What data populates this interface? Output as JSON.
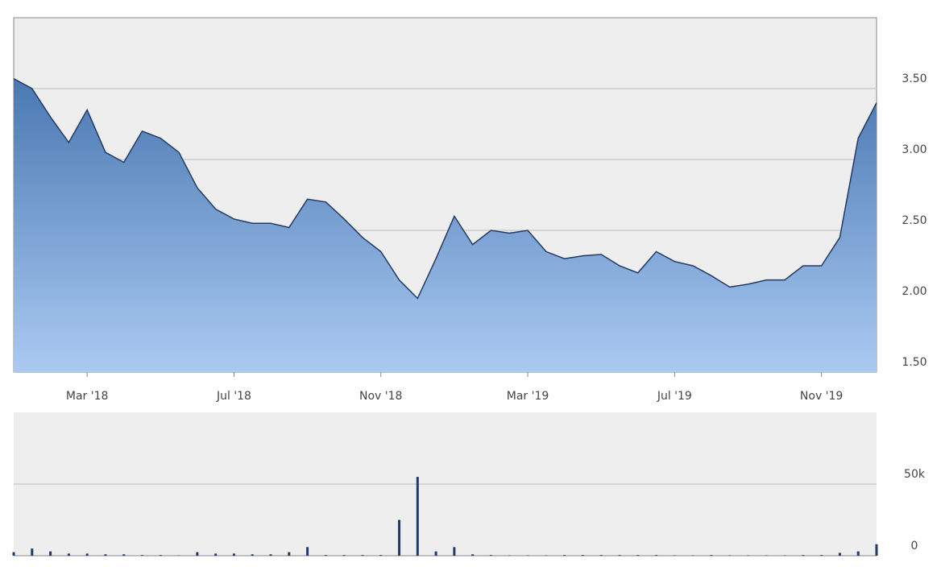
{
  "chart_data": [
    {
      "type": "area",
      "categories": [
        null,
        null,
        null,
        null,
        "Mar '18",
        null,
        null,
        null,
        null,
        null,
        null,
        null,
        "Jul '18",
        null,
        null,
        null,
        null,
        null,
        null,
        null,
        "Nov '18",
        null,
        null,
        null,
        null,
        null,
        null,
        null,
        "Mar '19",
        null,
        null,
        null,
        null,
        null,
        null,
        null,
        "Jul '19",
        null,
        null,
        null,
        null,
        null,
        null,
        null,
        "Nov '19",
        null,
        null,
        null
      ],
      "values": [
        3.57,
        3.5,
        3.3,
        3.12,
        3.35,
        3.05,
        2.98,
        3.2,
        3.15,
        3.05,
        2.8,
        2.65,
        2.58,
        2.55,
        2.55,
        2.52,
        2.72,
        2.7,
        2.58,
        2.45,
        2.35,
        2.15,
        2.02,
        2.3,
        2.6,
        2.4,
        2.5,
        2.48,
        2.5,
        2.35,
        2.3,
        2.32,
        2.33,
        2.25,
        2.2,
        2.35,
        2.28,
        2.25,
        2.18,
        2.1,
        2.12,
        2.15,
        2.15,
        2.25,
        2.25,
        2.45,
        3.15,
        3.4
      ],
      "color": "#1f3b66",
      "ylim": [
        1.5,
        4.0
      ],
      "yticks": [
        {
          "value": 1.5,
          "label": "1.50"
        },
        {
          "value": 2.0,
          "label": "2.00"
        },
        {
          "value": 2.5,
          "label": "2.50"
        },
        {
          "value": 3.0,
          "label": "3.00"
        },
        {
          "value": 3.5,
          "label": "3.50"
        }
      ],
      "grid": true
    },
    {
      "type": "bar",
      "values": [
        2500,
        5000,
        3000,
        1500,
        1500,
        1000,
        1000,
        500,
        500,
        200,
        2500,
        1500,
        1500,
        1000,
        1000,
        2500,
        6000,
        500,
        500,
        500,
        500,
        25000,
        55000,
        3000,
        6000,
        1000,
        500,
        300,
        300,
        300,
        500,
        500,
        500,
        500,
        500,
        500,
        300,
        300,
        500,
        300,
        300,
        300,
        300,
        500,
        500,
        2000,
        3000,
        8000
      ],
      "color": "#1f3b66",
      "ylim": [
        0,
        100000
      ],
      "yticks": [
        0,
        {
          "value": 50000,
          "label": "50k"
        }
      ],
      "grid": true
    }
  ]
}
